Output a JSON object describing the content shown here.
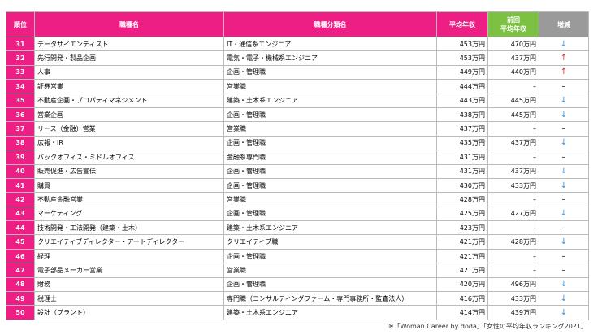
{
  "table": {
    "header": [
      "順位",
      "職種名",
      "職種分類名",
      "平均年収",
      "前回\n平均年収",
      "増減"
    ],
    "rows": [
      [
        "31",
        "データサイエンティスト",
        "IT・通信系エンジニア",
        "453万円",
        "470万円",
        "↓"
      ],
      [
        "32",
        "先行開発・製品企画",
        "電気・電子・機械系エンジニア",
        "453万円",
        "437万円",
        "↑"
      ],
      [
        "33",
        "人事",
        "企画・管理職",
        "449万円",
        "440万円",
        "↑"
      ],
      [
        "34",
        "証券営業",
        "営業職",
        "444万円",
        "–",
        "–"
      ],
      [
        "35",
        "不動産企画・プロパティマネジメント",
        "建築・土木系エンジニア",
        "443万円",
        "445万円",
        "↓"
      ],
      [
        "36",
        "営業企画",
        "企画・管理職",
        "438万円",
        "445万円",
        "↓"
      ],
      [
        "37",
        "リース（金融）営業",
        "営業職",
        "437万円",
        "–",
        "–"
      ],
      [
        "38",
        "広報・IR",
        "企画・管理職",
        "435万円",
        "437万円",
        "↓"
      ],
      [
        "39",
        "バックオフィス・ミドルオフィス",
        "金融系専門職",
        "431万円",
        "–",
        "–"
      ],
      [
        "40",
        "販売促進・広告宣伝",
        "企画・管理職",
        "431万円",
        "437万円",
        "↓"
      ],
      [
        "41",
        "購買",
        "企画・管理職",
        "430万円",
        "433万円",
        "↓"
      ],
      [
        "42",
        "不動産金融営業",
        "営業職",
        "428万円",
        "–",
        "–"
      ],
      [
        "43",
        "マーケティング",
        "企画・管理職",
        "425万円",
        "427万円",
        "↓"
      ],
      [
        "44",
        "技術開発・工法開発（建築・土木）",
        "建築・土木系エンジニア",
        "423万円",
        "–",
        "–"
      ],
      [
        "45",
        "クリエイティブディレクター・アートディレクター",
        "クリエイティブ職",
        "421万円",
        "428万円",
        "↓"
      ],
      [
        "46",
        "経理",
        "企画・管理職",
        "421万円",
        "–",
        "–"
      ],
      [
        "47",
        "電子部品メーカー営業",
        "営業職",
        "421万円",
        "–",
        "–"
      ],
      [
        "48",
        "財務",
        "企画・管理職",
        "420万円",
        "496万円",
        "↓"
      ],
      [
        "49",
        "税理士",
        "専門職（コンサルティングファーム・専門事務所・監査法人）",
        "416万円",
        "433万円",
        "↓"
      ],
      [
        "50",
        "設計（プラント）",
        "建築・土木系エンジニア",
        "414万円",
        "439万円",
        "↓"
      ]
    ]
  },
  "footer": "※「Woman Career by doda」「女性の平均年収ランキング2021」"
}
